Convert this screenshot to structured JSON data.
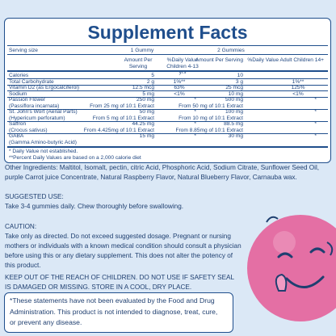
{
  "title": "Supplement Facts",
  "serving_size_label": "Serving size",
  "columns": [
    {
      "serving": "1 Gummy",
      "amount_header": "Amount Per Serving",
      "dv_header": "%Daily Value Children 4-13 yrs"
    },
    {
      "serving": "2 Gummies",
      "amount_header": "Amount Per Serving",
      "dv_header": "%Daily Value Adult Children 14+"
    }
  ],
  "rows": [
    {
      "name": "Calories",
      "cells": [
        {
          "amount": "5",
          "dv": ""
        },
        {
          "amount": "10",
          "dv": ""
        }
      ]
    },
    {
      "name": "Total Carbohydrate",
      "cells": [
        {
          "amount": "2 g",
          "dv": "1%**"
        },
        {
          "amount": "3 g",
          "dv": "1%**"
        }
      ]
    },
    {
      "name": "Vitamin D2 (as Ergocalciferol)",
      "cells": [
        {
          "amount": "12.5 mcg",
          "dv": "63%"
        },
        {
          "amount": "25 mcg",
          "dv": "125%"
        }
      ]
    },
    {
      "name": "Sodium",
      "cells": [
        {
          "amount": "5 mg",
          "dv": "<1%"
        },
        {
          "amount": "10 mg",
          "dv": "<1%"
        }
      ]
    },
    {
      "name": "Passion Flower",
      "sub": "(Passiflora incarnata)",
      "cells": [
        {
          "amount": "250 mg",
          "dv": "*",
          "extract": "From 25 mg of 10:1 Extract"
        },
        {
          "amount": "500 mg",
          "dv": "*",
          "extract": "From 50 mg of 10:1 Extract"
        }
      ]
    },
    {
      "name": "St. John's Wort (Aerial Parts)",
      "sub": "(Hypericum perforatum)",
      "cells": [
        {
          "amount": "50 mg",
          "dv": "*",
          "extract": "From 5 mg of 10:1 Extract"
        },
        {
          "amount": "100 mg",
          "dv": "*",
          "extract": "From 10 mg of 10:1 Extract"
        }
      ]
    },
    {
      "name": "Saffron",
      "sub": "(Crocus sativus)",
      "cells": [
        {
          "amount": "44.25 mg",
          "dv": "*",
          "extract": "From 4.425mg of 10:1 Extract"
        },
        {
          "amount": "88.5 mg",
          "dv": "*",
          "extract": "From 8.85mg of 10:1 Extract"
        }
      ]
    },
    {
      "name": "GABA",
      "sub": "(Gamma Amino-butyric Acid)",
      "cells": [
        {
          "amount": "15 mg",
          "dv": "*"
        },
        {
          "amount": "30 mg",
          "dv": "*"
        }
      ]
    }
  ],
  "footnotes": [
    "* Daily Value not established.",
    "**Percent Daily Values are based on a 2,000 calorie diet"
  ],
  "other_ingredients": [
    "Other Ingredients: Maltitol, Isomalt, pectin, citric Acid, Phosphoric Acid, Sodium Citrate, Sunflower Seed Oil,",
    "purple Carrot juice Concentrate, Natural Raspberry Flavor, Natural Blueberry Flavor, Carnauba wax."
  ],
  "suggested_use": [
    "SUGGESTED USE:",
    "Take 3-4 gummies daily. Chew thoroughly before swallowing."
  ],
  "caution": [
    "CAUTION:",
    "Take  only as directed. Do not exceed suggested dosage.  Pregnant or nursing",
    "mothers or individuals with a known  medical  condition should consult  a  physician",
    "before using this or any dietary supplement. This does not alter the potency of",
    "this product."
  ],
  "warning": [
    "KEEP OUT OF THE REACH OF CHILDREN. DO NOT USE IF SAFETY SEAL",
    "IS DAMAGED OR MISSING. STORE IN A COOL, DRY PLACE."
  ],
  "disclaimer": [
    "*These statements have not been evaluated by the Food and Drug",
    "Administration. This product is not intended to diagnose, treat, cure,",
    "or prevent any disease."
  ]
}
